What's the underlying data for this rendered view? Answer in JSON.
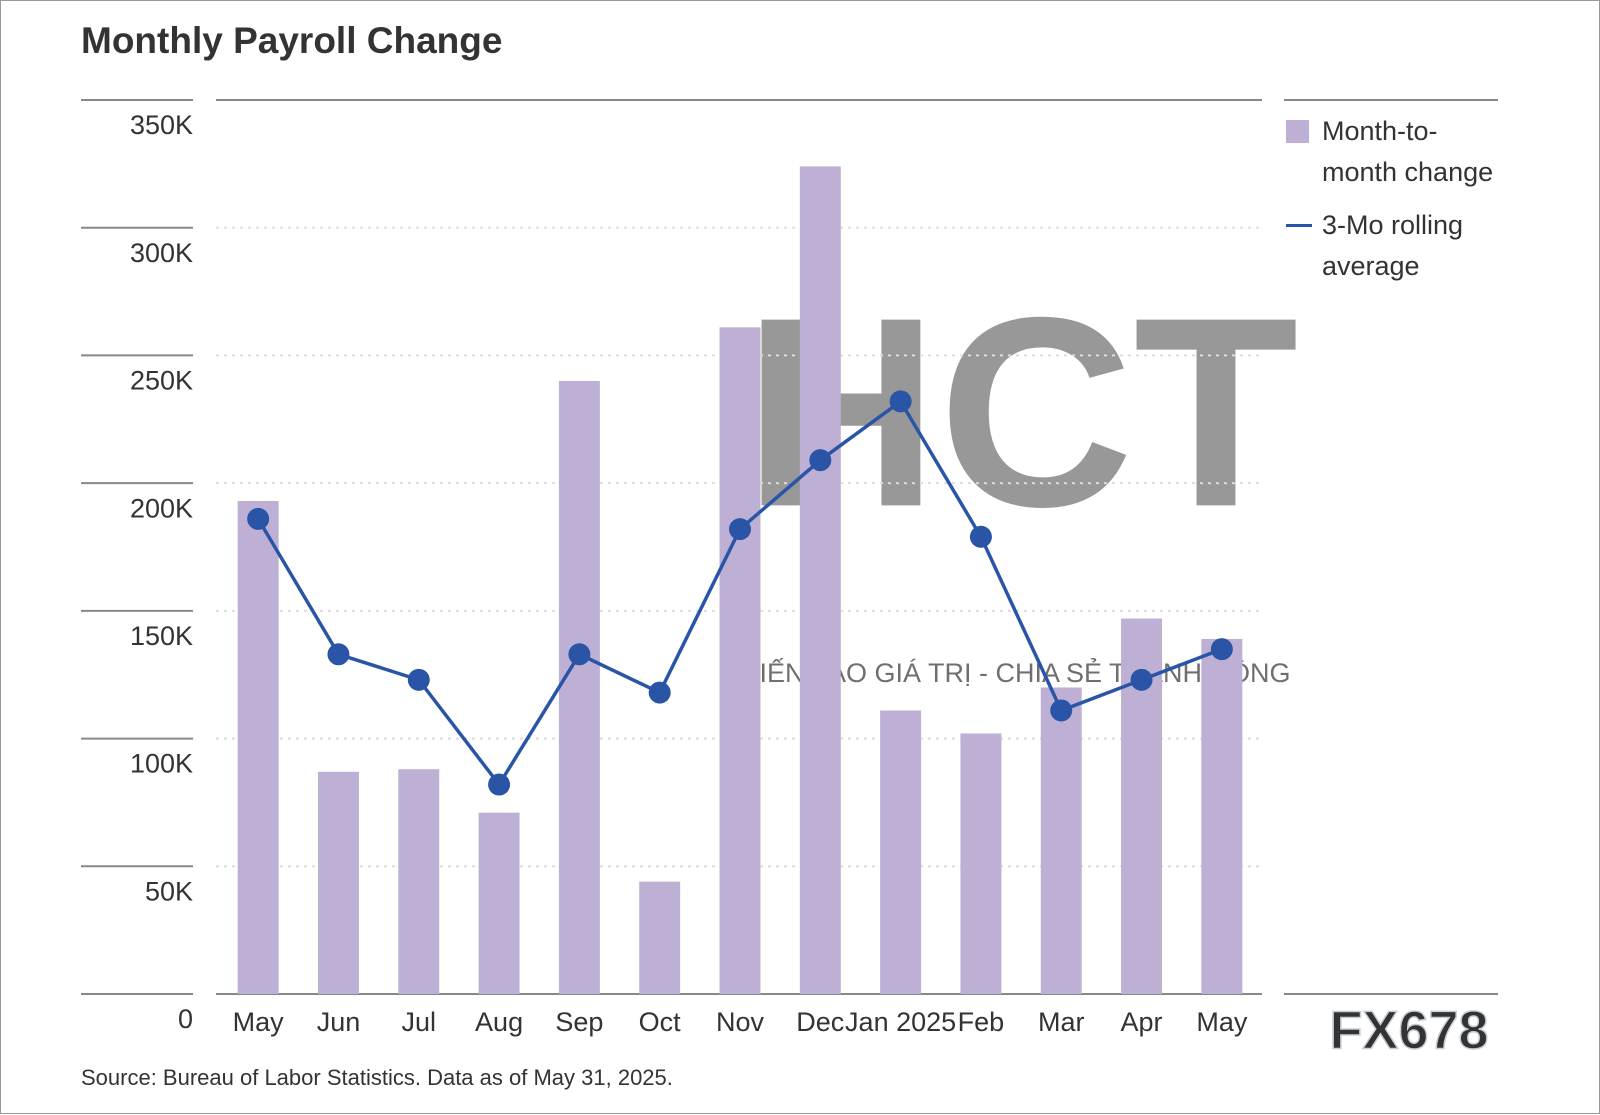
{
  "chart_data": {
    "type": "bar",
    "title": "Monthly Payroll Change",
    "source": "Source: Bureau of Labor Statistics. Data as of May 31, 2025.",
    "categories": [
      "May",
      "Jun",
      "Jul",
      "Aug",
      "Sep",
      "Oct",
      "Nov",
      "Dec",
      "Jan 2025",
      "Feb",
      "Mar",
      "Apr",
      "May"
    ],
    "series": [
      {
        "name": "Month-to-month change",
        "type": "bar",
        "color": "#bdb0d4",
        "values": [
          193000,
          87000,
          88000,
          71000,
          240000,
          44000,
          261000,
          324000,
          111000,
          102000,
          120000,
          147000,
          139000
        ]
      },
      {
        "name": "3-Mo rolling average",
        "type": "line",
        "color": "#2a55a6",
        "values": [
          186000,
          133000,
          123000,
          82000,
          133000,
          118000,
          182000,
          209000,
          232000,
          179000,
          111000,
          123000,
          135000
        ]
      }
    ],
    "ylim": [
      0,
      350000
    ],
    "yticks": [
      0,
      {
        "value": 50000,
        "label": "50K"
      },
      {
        "value": 100000,
        "label": "100K"
      },
      {
        "value": 150000,
        "label": "150K"
      },
      {
        "value": 200000,
        "label": "200K"
      },
      {
        "value": 250000,
        "label": "250K"
      },
      {
        "value": 300000,
        "label": "300K"
      },
      {
        "value": 350000,
        "label": "350K"
      }
    ],
    "grid": true,
    "watermarks": [
      "HCT",
      "KIẾN TẠO GIÁ TRỊ - CHIA SẺ THÀNH CÔNG",
      "FX678"
    ]
  }
}
